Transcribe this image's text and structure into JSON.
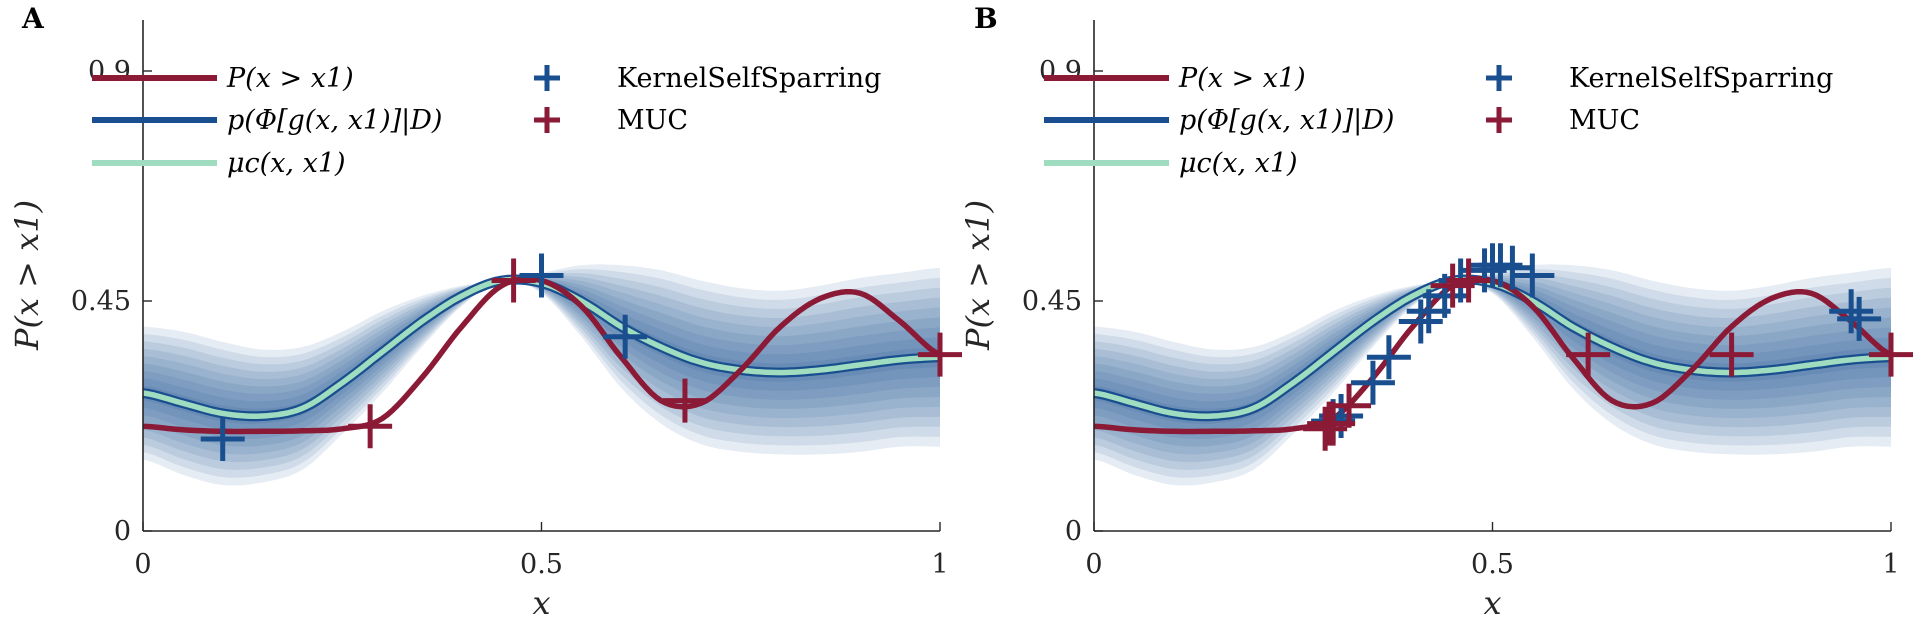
{
  "colors": {
    "true_curve": "#8a1a35",
    "gp_mean": "#1a4f8f",
    "mu_c": "#9fdcc0",
    "band": "#1a4f8f",
    "kernel_marker": "#1a4f8f",
    "muc_marker": "#8a1a35"
  },
  "chart_data": [
    {
      "panel": "A",
      "type": "line",
      "xlabel": "x",
      "ylabel": "P(x > x1)",
      "xlim": [
        0,
        1
      ],
      "ylim": [
        0,
        1
      ],
      "xticks": [
        "0",
        "0.5",
        "1"
      ],
      "yticks": [
        "0",
        "0.45",
        "0.9"
      ],
      "ytick_values": [
        0,
        0.45,
        0.9
      ],
      "legend": {
        "placement": "top-left",
        "lines": [
          "P(x > x1)",
          "p(Φ[g(x, x1)]|D)",
          "μc(x, x1)"
        ],
        "markers": [
          "KernelSelfSparring",
          "MUC"
        ]
      },
      "curves": {
        "x": [
          0,
          0.05,
          0.1,
          0.15,
          0.2,
          0.25,
          0.3,
          0.35,
          0.4,
          0.45,
          0.5,
          0.55,
          0.6,
          0.65,
          0.7,
          0.75,
          0.8,
          0.85,
          0.9,
          0.95,
          1.0
        ],
        "true": [
          0.205,
          0.198,
          0.195,
          0.195,
          0.196,
          0.2,
          0.22,
          0.3,
          0.4,
          0.48,
          0.49,
          0.44,
          0.34,
          0.255,
          0.25,
          0.315,
          0.4,
          0.455,
          0.465,
          0.41,
          0.345
        ],
        "gp_mean": [
          0.27,
          0.25,
          0.23,
          0.225,
          0.24,
          0.29,
          0.35,
          0.41,
          0.46,
          0.49,
          0.485,
          0.45,
          0.4,
          0.36,
          0.33,
          0.315,
          0.31,
          0.315,
          0.325,
          0.335,
          0.34
        ],
        "band_halfwidth": [
          0.13,
          0.14,
          0.14,
          0.13,
          0.12,
          0.1,
          0.08,
          0.05,
          0.02,
          0.0,
          0.02,
          0.07,
          0.12,
          0.15,
          0.16,
          0.16,
          0.16,
          0.165,
          0.17,
          0.17,
          0.175
        ]
      },
      "kernel_points": [
        {
          "x": 0.1,
          "y": 0.18
        },
        {
          "x": 0.5,
          "y": 0.5
        },
        {
          "x": 0.605,
          "y": 0.38
        }
      ],
      "muc_points": [
        {
          "x": 0.285,
          "y": 0.205
        },
        {
          "x": 0.465,
          "y": 0.49
        },
        {
          "x": 0.68,
          "y": 0.255
        },
        {
          "x": 1.0,
          "y": 0.345
        }
      ]
    },
    {
      "panel": "B",
      "type": "line",
      "xlabel": "x",
      "ylabel": "P(x > x1)",
      "xlim": [
        0,
        1
      ],
      "ylim": [
        0,
        1
      ],
      "xticks": [
        "0",
        "0.5",
        "1"
      ],
      "yticks": [
        "0",
        "0.45",
        "0.9"
      ],
      "ytick_values": [
        0,
        0.45,
        0.9
      ],
      "legend": {
        "placement": "top-left",
        "lines": [
          "P(x > x1)",
          "p(Φ[g(x, x1)]|D)",
          "μc(x, x1)"
        ],
        "markers": [
          "KernelSelfSparring",
          "MUC"
        ]
      },
      "curves": {
        "x": [
          0,
          0.05,
          0.1,
          0.15,
          0.2,
          0.25,
          0.3,
          0.35,
          0.4,
          0.45,
          0.5,
          0.55,
          0.6,
          0.65,
          0.7,
          0.75,
          0.8,
          0.85,
          0.9,
          0.95,
          1.0
        ],
        "true": [
          0.205,
          0.198,
          0.195,
          0.195,
          0.196,
          0.2,
          0.22,
          0.3,
          0.4,
          0.48,
          0.49,
          0.44,
          0.34,
          0.255,
          0.25,
          0.315,
          0.4,
          0.455,
          0.465,
          0.41,
          0.345
        ],
        "gp_mean": [
          0.27,
          0.25,
          0.23,
          0.225,
          0.24,
          0.29,
          0.35,
          0.41,
          0.46,
          0.49,
          0.485,
          0.45,
          0.4,
          0.36,
          0.33,
          0.315,
          0.31,
          0.315,
          0.325,
          0.335,
          0.34
        ],
        "band_halfwidth": [
          0.13,
          0.14,
          0.14,
          0.13,
          0.12,
          0.1,
          0.08,
          0.05,
          0.02,
          0.0,
          0.02,
          0.07,
          0.12,
          0.15,
          0.16,
          0.16,
          0.16,
          0.165,
          0.17,
          0.17,
          0.175
        ]
      },
      "kernel_points": [
        {
          "x": 0.3,
          "y": 0.215
        },
        {
          "x": 0.31,
          "y": 0.225
        },
        {
          "x": 0.35,
          "y": 0.29
        },
        {
          "x": 0.37,
          "y": 0.34
        },
        {
          "x": 0.41,
          "y": 0.41
        },
        {
          "x": 0.42,
          "y": 0.43
        },
        {
          "x": 0.44,
          "y": 0.46
        },
        {
          "x": 0.46,
          "y": 0.49
        },
        {
          "x": 0.49,
          "y": 0.51
        },
        {
          "x": 0.5,
          "y": 0.52
        },
        {
          "x": 0.51,
          "y": 0.52
        },
        {
          "x": 0.525,
          "y": 0.515
        },
        {
          "x": 0.55,
          "y": 0.5
        },
        {
          "x": 0.95,
          "y": 0.43
        },
        {
          "x": 0.96,
          "y": 0.415
        }
      ],
      "muc_points": [
        {
          "x": 0.29,
          "y": 0.2
        },
        {
          "x": 0.295,
          "y": 0.21
        },
        {
          "x": 0.3,
          "y": 0.21
        },
        {
          "x": 0.32,
          "y": 0.245
        },
        {
          "x": 0.45,
          "y": 0.48
        },
        {
          "x": 0.47,
          "y": 0.49
        },
        {
          "x": 0.62,
          "y": 0.345
        },
        {
          "x": 0.8,
          "y": 0.345
        },
        {
          "x": 1.0,
          "y": 0.345
        }
      ]
    }
  ]
}
